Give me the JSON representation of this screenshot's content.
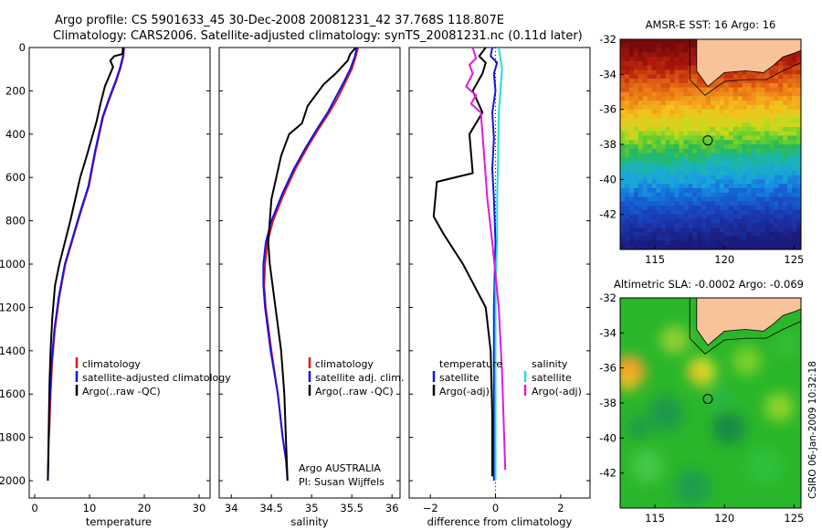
{
  "header": {
    "title_line1": "Argo profile: CS 5901633_45 30-Dec-2008 20081231_42 37.768S 118.807E",
    "title_line2": "Climatology: CARS2006. Satellite-adjusted climatology: synTS_20081231.nc (0.11d later)"
  },
  "colors": {
    "climatology": "#e11818",
    "satellite": "#1515e0",
    "argo": "#000000",
    "salinity_satellite": "#28dada",
    "salinity_argo": "#e018e0",
    "land": "#f8c39a"
  },
  "chart_data": [
    {
      "type": "line",
      "name": "temperature-panel",
      "xlabel": "temperature",
      "ylabel": "",
      "xlim": [
        -1,
        32
      ],
      "ylim": [
        2080,
        0
      ],
      "xticks": [
        0,
        10,
        20,
        30
      ],
      "xtick_labels": [
        "0",
        "10",
        "20",
        "30"
      ],
      "yticks": [
        0,
        200,
        400,
        600,
        800,
        1000,
        1200,
        1400,
        1600,
        1800,
        2000
      ],
      "ytick_labels": [
        "0",
        "200",
        "400",
        "600",
        "800",
        "1000",
        "1200",
        "1400",
        "1600",
        "1800",
        "2000"
      ],
      "legend": [
        "climatology",
        "satellite-adjusted climatology",
        "Argo(..raw -QC)"
      ],
      "series": [
        {
          "name": "climatology",
          "color_key": "climatology",
          "x": [
            16.3,
            16.2,
            15.6,
            14.8,
            13.6,
            12.5,
            11.8,
            11.1,
            10.5,
            9.9,
            8.4,
            7.0,
            5.6,
            4.5,
            3.7,
            3.2,
            2.9,
            2.7,
            2.6
          ],
          "y": [
            0,
            40,
            100,
            160,
            240,
            320,
            400,
            480,
            560,
            640,
            760,
            880,
            1000,
            1150,
            1300,
            1450,
            1600,
            1750,
            1800
          ]
        },
        {
          "name": "satellite-adjusted climatology",
          "color_key": "satellite",
          "x": [
            16.3,
            16.1,
            15.5,
            14.7,
            13.5,
            12.4,
            11.7,
            11.0,
            10.4,
            9.8,
            8.3,
            6.9,
            5.5,
            4.4,
            3.6,
            3.1,
            2.8,
            2.6,
            2.5,
            2.4
          ],
          "y": [
            0,
            40,
            100,
            160,
            240,
            320,
            400,
            480,
            560,
            640,
            760,
            880,
            1000,
            1150,
            1300,
            1450,
            1600,
            1750,
            1900,
            2000
          ]
        },
        {
          "name": "Argo(..raw -QC)",
          "color_key": "argo",
          "x": [
            16.1,
            16.0,
            14.5,
            13.8,
            14.3,
            12.8,
            12.0,
            11.3,
            10.4,
            9.5,
            8.3,
            7.4,
            6.5,
            5.5,
            4.5,
            3.7,
            3.2,
            2.9,
            2.7,
            2.6,
            2.5,
            2.4
          ],
          "y": [
            0,
            30,
            40,
            60,
            90,
            180,
            260,
            340,
            420,
            500,
            600,
            700,
            800,
            900,
            1000,
            1100,
            1250,
            1400,
            1550,
            1700,
            1850,
            2000
          ]
        }
      ]
    },
    {
      "type": "line",
      "name": "salinity-panel",
      "xlabel": "salinity",
      "ylabel": "",
      "xlim": [
        33.85,
        36.1
      ],
      "ylim": [
        2080,
        0
      ],
      "xticks": [
        34,
        34.5,
        35,
        35.5,
        36
      ],
      "xtick_labels": [
        "34",
        "34.5",
        "35",
        "35.5",
        "36"
      ],
      "legend": [
        "climatology",
        "satellite adj. clim.",
        "Argo(..raw -QC)"
      ],
      "annotation_line1": "Argo AUSTRALIA",
      "annotation_line2": "PI: Susan Wijffels",
      "series": [
        {
          "name": "climatology",
          "color_key": "climatology",
          "x": [
            35.58,
            35.55,
            35.5,
            35.42,
            35.33,
            35.22,
            35.08,
            34.95,
            34.8,
            34.65,
            34.52,
            34.45,
            34.42,
            34.41,
            34.43,
            34.5,
            34.58,
            34.64,
            34.68
          ],
          "y": [
            0,
            40,
            100,
            160,
            230,
            300,
            380,
            460,
            560,
            680,
            800,
            900,
            1000,
            1100,
            1200,
            1400,
            1600,
            1800,
            1900
          ]
        },
        {
          "name": "satellite adj. clim.",
          "color_key": "satellite",
          "x": [
            35.56,
            35.54,
            35.48,
            35.4,
            35.3,
            35.2,
            35.06,
            34.93,
            34.78,
            34.63,
            34.5,
            34.43,
            34.4,
            34.4,
            34.42,
            34.49,
            34.58,
            34.64,
            34.68,
            34.7
          ],
          "y": [
            0,
            40,
            100,
            160,
            230,
            300,
            380,
            460,
            560,
            680,
            800,
            900,
            1000,
            1100,
            1200,
            1400,
            1600,
            1800,
            1900,
            2000
          ]
        },
        {
          "name": "Argo(..raw -QC)",
          "color_key": "argo",
          "x": [
            35.55,
            35.48,
            35.45,
            35.3,
            35.15,
            35.05,
            34.95,
            34.88,
            34.72,
            34.62,
            34.56,
            34.5,
            34.48,
            34.46,
            34.48,
            34.55,
            34.62,
            34.66,
            34.68,
            34.7
          ],
          "y": [
            0,
            30,
            60,
            120,
            170,
            220,
            270,
            350,
            400,
            500,
            600,
            700,
            800,
            900,
            1000,
            1200,
            1400,
            1600,
            1800,
            2000
          ]
        }
      ]
    },
    {
      "type": "line",
      "name": "difference-panel",
      "xlabel": "difference from climatology",
      "ylabel": "",
      "xlim": [
        -2.65,
        2.9
      ],
      "ylim": [
        2080,
        0
      ],
      "xticks": [
        -2,
        0,
        2
      ],
      "xtick_labels": [
        "−2",
        "0",
        "2"
      ],
      "legend_col1_title": "temperature",
      "legend_col2_title": "salinity",
      "legend": [
        "satellite",
        "Argo(-adj)",
        "satellite",
        "Argo(-adj)"
      ],
      "series": [
        {
          "name": "temperature satellite",
          "color_key": "satellite",
          "x": [
            -0.1,
            -0.15,
            0.05,
            -0.05,
            0.0,
            -0.1,
            -0.05,
            -0.1,
            -0.05,
            0.0,
            -0.05,
            -0.05,
            -0.05,
            -0.05
          ],
          "y": [
            0,
            40,
            70,
            120,
            200,
            300,
            420,
            560,
            700,
            900,
            1200,
            1500,
            1800,
            2000
          ]
        },
        {
          "name": "temperature Argo(-adj)",
          "color_key": "argo",
          "x": [
            -0.3,
            -0.5,
            -0.3,
            -0.4,
            -0.7,
            -0.4,
            -0.8,
            -0.7,
            -1.8,
            -1.9,
            -1.6,
            -1.0,
            -0.3,
            -0.15,
            -0.1,
            -0.1
          ],
          "y": [
            0,
            40,
            70,
            120,
            200,
            300,
            400,
            580,
            620,
            780,
            860,
            1000,
            1200,
            1400,
            1700,
            1980
          ]
        },
        {
          "name": "salinity satellite",
          "color_key": "salinity_satellite",
          "x": [
            0.1,
            0.2,
            0.15,
            0.1,
            0.08,
            0.05,
            0.05,
            0.0,
            0.0,
            0.0,
            0.0
          ],
          "y": [
            0,
            100,
            200,
            300,
            500,
            700,
            900,
            1100,
            1400,
            1700,
            2000
          ]
        },
        {
          "name": "salinity Argo(-adj)",
          "color_key": "salinity_argo",
          "x": [
            -0.7,
            -0.6,
            -0.8,
            -0.7,
            -0.9,
            -0.6,
            -0.75,
            -0.45,
            -0.35,
            -0.25,
            -0.1,
            0.1,
            0.2,
            0.3
          ],
          "y": [
            0,
            50,
            80,
            120,
            180,
            220,
            260,
            300,
            500,
            700,
            900,
            1200,
            1500,
            1950
          ]
        }
      ]
    },
    {
      "type": "heatmap",
      "name": "sst-map",
      "title": "AMSR-E SST: 16 Argo: 16",
      "xlim": [
        112.5,
        125.5
      ],
      "ylim": [
        -44,
        -32
      ],
      "xticks": [
        115,
        120,
        125
      ],
      "xtick_labels": [
        "115",
        "120",
        "125"
      ],
      "yticks": [
        -32,
        -34,
        -36,
        -38,
        -40,
        -42
      ],
      "ytick_labels": [
        "-32",
        "-34",
        "-36",
        "-38",
        "-40",
        "-42"
      ],
      "float_position": [
        118.8,
        -37.77
      ]
    },
    {
      "type": "heatmap",
      "name": "sla-map",
      "title": "Altimetric SLA: -0.0002 Argo: -0.069",
      "xlim": [
        112.5,
        125.5
      ],
      "ylim": [
        -44,
        -32
      ],
      "xticks": [
        115,
        120,
        125
      ],
      "xtick_labels": [
        "115",
        "120",
        "125"
      ],
      "yticks": [
        -32,
        -34,
        -36,
        -38,
        -40,
        -42
      ],
      "ytick_labels": [
        "-32",
        "-34",
        "-36",
        "-38",
        "-40",
        "-42"
      ],
      "float_position": [
        118.8,
        -37.77
      ]
    }
  ],
  "footer": {
    "stamp": "CSIRO 06-Jan-2009 10:32:18"
  }
}
